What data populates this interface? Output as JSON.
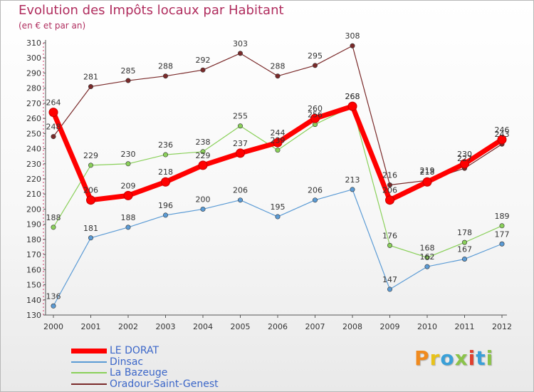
{
  "header": {
    "title": "Evolution des Impôts locaux par Habitant",
    "subtitle": "(en € et par an)"
  },
  "logo": {
    "text": "Proxiti",
    "colors": [
      "#f08a1e",
      "#e8c21a",
      "#3aa0d8",
      "#8bc34a",
      "#e0402e",
      "#3aa0d8",
      "#8bc34a"
    ]
  },
  "chart_data": {
    "type": "line",
    "title": "Evolution des Impôts locaux par Habitant",
    "subtitle": "(en € et par an)",
    "x": [
      "2000",
      "2001",
      "2002",
      "2003",
      "2004",
      "2005",
      "2006",
      "2007",
      "2008",
      "2009",
      "2010",
      "2011",
      "2012"
    ],
    "ylim": [
      130,
      310
    ],
    "yticks": [
      130,
      140,
      150,
      160,
      170,
      180,
      190,
      200,
      210,
      220,
      230,
      240,
      250,
      260,
      270,
      280,
      290,
      300,
      310
    ],
    "grid": false,
    "legend_position": "bottom-left",
    "series": [
      {
        "name": "LE DORAT",
        "color": "#ff0000",
        "values": [
          264,
          206,
          209,
          218,
          229,
          237,
          244,
          260,
          268,
          206,
          218,
          230,
          246
        ]
      },
      {
        "name": "Dinsac",
        "color": "#5b9bd5",
        "values": [
          136,
          181,
          188,
          196,
          200,
          206,
          195,
          206,
          213,
          147,
          162,
          167,
          177
        ]
      },
      {
        "name": "La Bazeuge",
        "color": "#8ad05a",
        "values": [
          188,
          229,
          230,
          236,
          238,
          255,
          239,
          256,
          268,
          176,
          168,
          178,
          189
        ]
      },
      {
        "name": "Oradour-Saint-Genest",
        "color": "#7a2a2a",
        "values": [
          248,
          281,
          285,
          288,
          292,
          303,
          288,
          295,
          308,
          216,
          219,
          227,
          243
        ]
      }
    ]
  }
}
